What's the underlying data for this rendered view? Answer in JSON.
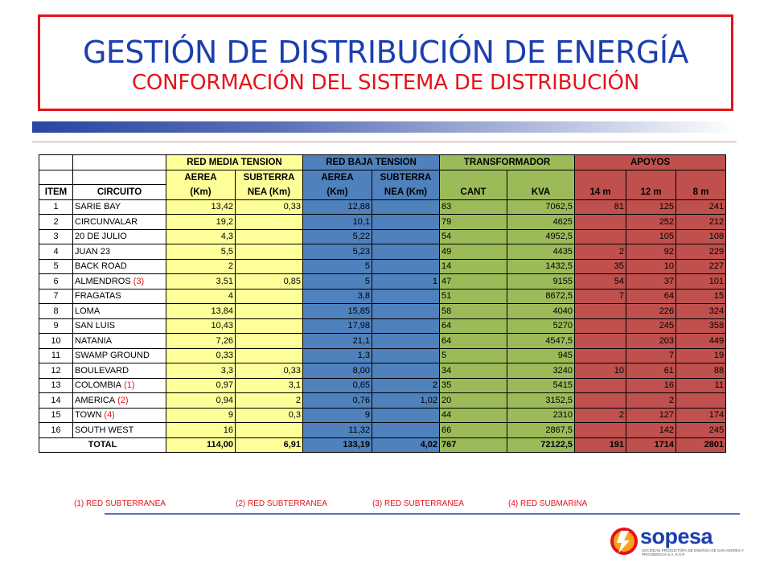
{
  "header": {
    "title": "GESTIÓN DE DISTRIBUCIÓN DE ENERGÍA",
    "subtitle": "CONFORMACIÓN DEL SISTEMA DE DISTRIBUCIÓN"
  },
  "table": {
    "groups": {
      "media": "RED MEDIA TENSION",
      "baja": "RED BAJA TENSION",
      "trafo": "TRANSFORMADOR",
      "apoyos": "APOYOS"
    },
    "columns": {
      "item": "ITEM",
      "circuito": "CIRCUITO",
      "mt_aerea_1": "AEREA",
      "mt_aerea_2": "(Km)",
      "mt_sub_1": "SUBTERRA",
      "mt_sub_2": "NEA (Km)",
      "bt_aerea_1": "AEREA",
      "bt_aerea_2": "(Km)",
      "bt_sub_1": "SUBTERRA",
      "bt_sub_2": "NEA (Km)",
      "cant": "CANT",
      "kva": "KVA",
      "m14": "14 m",
      "m12": "12 m",
      "m8": "8 m"
    },
    "rows": [
      {
        "item": "1",
        "circuito": "SARIE BAY",
        "note": "",
        "mt_aerea": "13,42",
        "mt_sub": "0,33",
        "bt_aerea": "12,88",
        "bt_sub": "",
        "cant": "83",
        "kva": "7062,5",
        "m14": "81",
        "m12": "125",
        "m8": "241"
      },
      {
        "item": "2",
        "circuito": "CIRCUNVALAR",
        "note": "",
        "mt_aerea": "19,2",
        "mt_sub": "",
        "bt_aerea": "10,1",
        "bt_sub": "",
        "cant": "79",
        "kva": "4625",
        "m14": "",
        "m12": "252",
        "m8": "212"
      },
      {
        "item": "3",
        "circuito": "20 DE JULIO",
        "note": "",
        "mt_aerea": "4,3",
        "mt_sub": "",
        "bt_aerea": "5,22",
        "bt_sub": "",
        "cant": "54",
        "kva": "4952,5",
        "m14": "",
        "m12": "105",
        "m8": "108"
      },
      {
        "item": "4",
        "circuito": "JUAN 23",
        "note": "",
        "mt_aerea": "5,5",
        "mt_sub": "",
        "bt_aerea": "5,23",
        "bt_sub": "",
        "cant": "49",
        "kva": "4435",
        "m14": "2",
        "m12": "92",
        "m8": "229"
      },
      {
        "item": "5",
        "circuito": "BACK ROAD",
        "note": "",
        "mt_aerea": "2",
        "mt_sub": "",
        "bt_aerea": "5",
        "bt_sub": "",
        "cant": "14",
        "kva": "1432,5",
        "m14": "35",
        "m12": "10",
        "m8": "227"
      },
      {
        "item": "6",
        "circuito": "ALMENDROS",
        "note": "(3)",
        "mt_aerea": "3,51",
        "mt_sub": "0,85",
        "bt_aerea": "5",
        "bt_sub": "1",
        "cant": "47",
        "kva": "9155",
        "m14": "54",
        "m12": "37",
        "m8": "101"
      },
      {
        "item": "7",
        "circuito": "FRAGATAS",
        "note": "",
        "mt_aerea": "4",
        "mt_sub": "",
        "bt_aerea": "3,8",
        "bt_sub": "",
        "cant": "51",
        "kva": "8672,5",
        "m14": "7",
        "m12": "64",
        "m8": "15"
      },
      {
        "item": "8",
        "circuito": "LOMA",
        "note": "",
        "mt_aerea": "13,84",
        "mt_sub": "",
        "bt_aerea": "15,85",
        "bt_sub": "",
        "cant": "58",
        "kva": "4040",
        "m14": "",
        "m12": "226",
        "m8": "324"
      },
      {
        "item": "9",
        "circuito": "SAN LUIS",
        "note": "",
        "mt_aerea": "10,43",
        "mt_sub": "",
        "bt_aerea": "17,98",
        "bt_sub": "",
        "cant": "64",
        "kva": "5270",
        "m14": "",
        "m12": "245",
        "m8": "358"
      },
      {
        "item": "10",
        "circuito": "NATANIA",
        "note": "",
        "mt_aerea": "7,26",
        "mt_sub": "",
        "bt_aerea": "21,1",
        "bt_sub": "",
        "cant": "64",
        "kva": "4547,5",
        "m14": "",
        "m12": "203",
        "m8": "449"
      },
      {
        "item": "11",
        "circuito": "SWAMP GROUND",
        "note": "",
        "mt_aerea": "0,33",
        "mt_sub": "",
        "bt_aerea": "1,3",
        "bt_sub": "",
        "cant": "5",
        "kva": "945",
        "m14": "",
        "m12": "7",
        "m8": "19"
      },
      {
        "item": "12",
        "circuito": "BOULEVARD",
        "note": "",
        "mt_aerea": "3,3",
        "mt_sub": "0,33",
        "bt_aerea": "8,00",
        "bt_sub": "",
        "cant": "34",
        "kva": "3240",
        "m14": "10",
        "m12": "61",
        "m8": "88"
      },
      {
        "item": "13",
        "circuito": "COLOMBIA",
        "note": "(1)",
        "mt_aerea": "0,97",
        "mt_sub": "3,1",
        "bt_aerea": "0,65",
        "bt_sub": "2",
        "cant": "35",
        "kva": "5415",
        "m14": "",
        "m12": "16",
        "m8": "11"
      },
      {
        "item": "14",
        "circuito": "AMERICA",
        "note": "(2)",
        "mt_aerea": "0,94",
        "mt_sub": "2",
        "bt_aerea": "0,76",
        "bt_sub": "1,02",
        "cant": "20",
        "kva": "3152,5",
        "m14": "",
        "m12": "2",
        "m8": ""
      },
      {
        "item": "15",
        "circuito": "TOWN",
        "note": "(4)",
        "mt_aerea": "9",
        "mt_sub": "0,3",
        "bt_aerea": "9",
        "bt_sub": "",
        "cant": "44",
        "kva": "2310",
        "m14": "2",
        "m12": "127",
        "m8": "174"
      },
      {
        "item": "16",
        "circuito": "SOUTH WEST",
        "note": "",
        "mt_aerea": "16",
        "mt_sub": "",
        "bt_aerea": "11,32",
        "bt_sub": "",
        "cant": "66",
        "kva": "2867,5",
        "m14": "",
        "m12": "142",
        "m8": "245"
      }
    ],
    "total": {
      "label": "TOTAL",
      "mt_aerea": "114,00",
      "mt_sub": "6,91",
      "bt_aerea": "133,19",
      "bt_sub": "4,02",
      "cant": "767",
      "kva": "72122,5",
      "m14": "191",
      "m12": "1714",
      "m8": "2801"
    }
  },
  "footnotes": [
    "(1) RED SUBTERRANEA",
    "(2) RED SUBTERRANEA",
    "(3) RED SUBTERRANEA",
    "(4) RED SUBMARINA"
  ],
  "logo": {
    "name": "sopesa",
    "tagline": "SOCIEDAD PRODUCTORA DE ENERGIA DE SAN ANDRES Y PROVIDENCIA S.A. E.S.P."
  },
  "colors": {
    "title": "#1c3fae",
    "accent": "#e4131b",
    "media_tension": "#ffff99",
    "baja_tension": "#4f81bd",
    "transformador": "#9bbb59",
    "apoyos": "#c0504d"
  }
}
